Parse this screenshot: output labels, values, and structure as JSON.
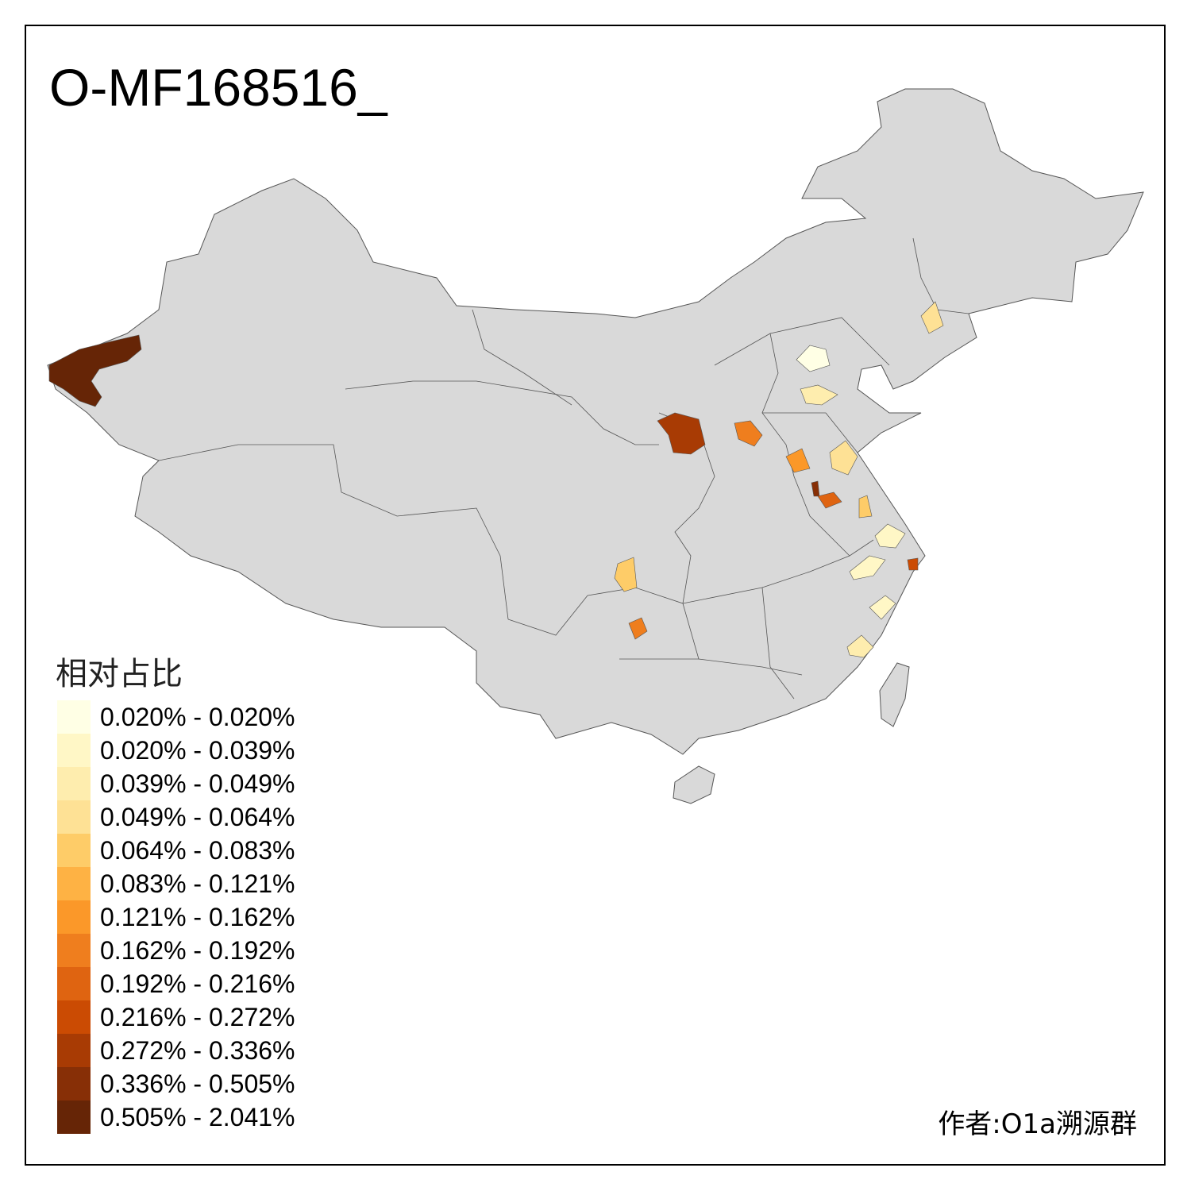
{
  "title": "O-MF168516_",
  "legend": {
    "title": "相对占比",
    "items": [
      {
        "label": "0.020% - 0.020%",
        "color": "#FFFFE5"
      },
      {
        "label": "0.020% - 0.039%",
        "color": "#FFF7C6"
      },
      {
        "label": "0.039% - 0.049%",
        "color": "#FEEDAE"
      },
      {
        "label": "0.049% - 0.064%",
        "color": "#FEE195"
      },
      {
        "label": "0.064% - 0.083%",
        "color": "#FECC68"
      },
      {
        "label": "0.083% - 0.121%",
        "color": "#FEB244"
      },
      {
        "label": "0.121% - 0.162%",
        "color": "#FB9829"
      },
      {
        "label": "0.162% - 0.192%",
        "color": "#EF7E1E"
      },
      {
        "label": "0.192% - 0.216%",
        "color": "#DF6411"
      },
      {
        "label": "0.216% - 0.272%",
        "color": "#CB4B03"
      },
      {
        "label": "0.272% - 0.336%",
        "color": "#A83B04"
      },
      {
        "label": "0.336% - 0.505%",
        "color": "#872F06"
      },
      {
        "label": "0.505% - 2.041%",
        "color": "#662506"
      }
    ]
  },
  "author": "作者:O1a溯源群",
  "map": {
    "base_color": "#D9D9D9",
    "border_color": "#555555"
  }
}
